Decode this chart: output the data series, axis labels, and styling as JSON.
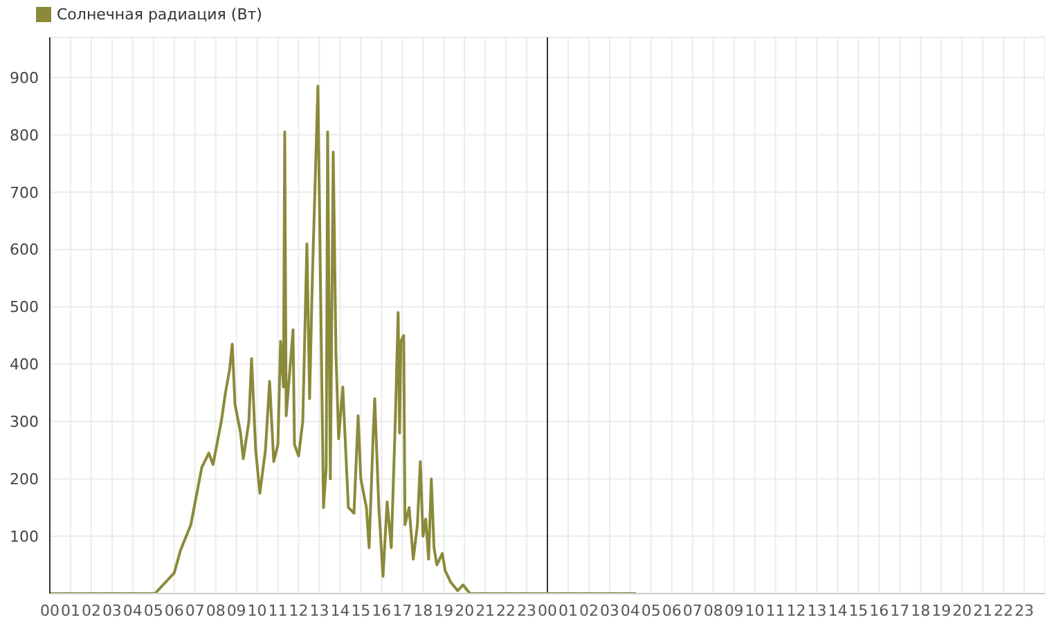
{
  "chart_data": {
    "type": "line",
    "legend": "top left",
    "grid": true,
    "marker": "none",
    "line_style": "solid",
    "xlim": [
      0,
      48
    ],
    "xticks": [
      {
        "value": 0,
        "label": "00"
      },
      {
        "value": 1,
        "label": "01"
      },
      {
        "value": 2,
        "label": "02"
      },
      {
        "value": 3,
        "label": "03"
      },
      {
        "value": 4,
        "label": "04"
      },
      {
        "value": 5,
        "label": "05"
      },
      {
        "value": 6,
        "label": "06"
      },
      {
        "value": 7,
        "label": "07"
      },
      {
        "value": 8,
        "label": "08"
      },
      {
        "value": 9,
        "label": "09"
      },
      {
        "value": 10,
        "label": "10"
      },
      {
        "value": 11,
        "label": "11"
      },
      {
        "value": 12,
        "label": "12"
      },
      {
        "value": 13,
        "label": "13"
      },
      {
        "value": 14,
        "label": "14"
      },
      {
        "value": 15,
        "label": "15"
      },
      {
        "value": 16,
        "label": "16"
      },
      {
        "value": 17,
        "label": "17"
      },
      {
        "value": 18,
        "label": "18"
      },
      {
        "value": 19,
        "label": "19"
      },
      {
        "value": 20,
        "label": "20"
      },
      {
        "value": 21,
        "label": "21"
      },
      {
        "value": 22,
        "label": "22"
      },
      {
        "value": 23,
        "label": "23"
      },
      {
        "value": 24,
        "label": "00"
      },
      {
        "value": 25,
        "label": "01"
      },
      {
        "value": 26,
        "label": "02"
      },
      {
        "value": 27,
        "label": "03"
      },
      {
        "value": 28,
        "label": "04"
      },
      {
        "value": 29,
        "label": "05"
      },
      {
        "value": 30,
        "label": "06"
      },
      {
        "value": 31,
        "label": "07"
      },
      {
        "value": 32,
        "label": "08"
      },
      {
        "value": 33,
        "label": "09"
      },
      {
        "value": 34,
        "label": "10"
      },
      {
        "value": 35,
        "label": "11"
      },
      {
        "value": 36,
        "label": "12"
      },
      {
        "value": 37,
        "label": "13"
      },
      {
        "value": 38,
        "label": "14"
      },
      {
        "value": 39,
        "label": "15"
      },
      {
        "value": 40,
        "label": "16"
      },
      {
        "value": 41,
        "label": "17"
      },
      {
        "value": 42,
        "label": "18"
      },
      {
        "value": 43,
        "label": "19"
      },
      {
        "value": 44,
        "label": "20"
      },
      {
        "value": 45,
        "label": "21"
      },
      {
        "value": 46,
        "label": "22"
      },
      {
        "value": 47,
        "label": "23"
      }
    ],
    "ylim": [
      0,
      970
    ],
    "yticks": [
      100,
      200,
      300,
      400,
      500,
      600,
      700,
      800,
      900
    ],
    "ref_lines": [
      {
        "axis": "x",
        "value": 24,
        "color": "#333333"
      }
    ],
    "series": [
      {
        "name": "Солнечная радиация (Вт)",
        "color": "#8b8a3a",
        "x": [
          0,
          5.07,
          6.0,
          6.3,
          6.8,
          7.33,
          7.67,
          7.87,
          8.27,
          8.47,
          8.67,
          8.8,
          8.93,
          9.2,
          9.33,
          9.6,
          9.73,
          9.93,
          10.13,
          10.4,
          10.6,
          10.8,
          11.0,
          11.13,
          11.27,
          11.33,
          11.4,
          11.6,
          11.73,
          11.8,
          12.0,
          12.2,
          12.4,
          12.53,
          12.67,
          12.8,
          12.93,
          13.07,
          13.2,
          13.33,
          13.4,
          13.53,
          13.67,
          13.8,
          13.93,
          14.13,
          14.4,
          14.67,
          14.87,
          15.0,
          15.27,
          15.4,
          15.6,
          15.67,
          15.87,
          16.07,
          16.27,
          16.47,
          16.67,
          16.8,
          16.87,
          16.93,
          17.07,
          17.13,
          17.33,
          17.53,
          17.73,
          17.87,
          18.0,
          18.13,
          18.27,
          18.4,
          18.53,
          18.67,
          18.93,
          19.07,
          19.33,
          19.67,
          19.93,
          20.27,
          28.27
        ],
        "values": [
          0,
          0,
          36,
          75,
          120,
          220,
          245,
          225,
          300,
          350,
          390,
          435,
          330,
          280,
          235,
          300,
          410,
          250,
          175,
          250,
          370,
          230,
          260,
          440,
          360,
          805,
          310,
          400,
          460,
          260,
          240,
          300,
          610,
          340,
          560,
          720,
          885,
          500,
          150,
          220,
          805,
          200,
          770,
          420,
          270,
          360,
          150,
          140,
          310,
          200,
          150,
          80,
          280,
          340,
          150,
          30,
          160,
          80,
          310,
          490,
          280,
          440,
          450,
          120,
          150,
          60,
          120,
          230,
          100,
          130,
          60,
          200,
          80,
          50,
          70,
          40,
          20,
          5,
          15,
          0,
          0
        ]
      }
    ]
  }
}
